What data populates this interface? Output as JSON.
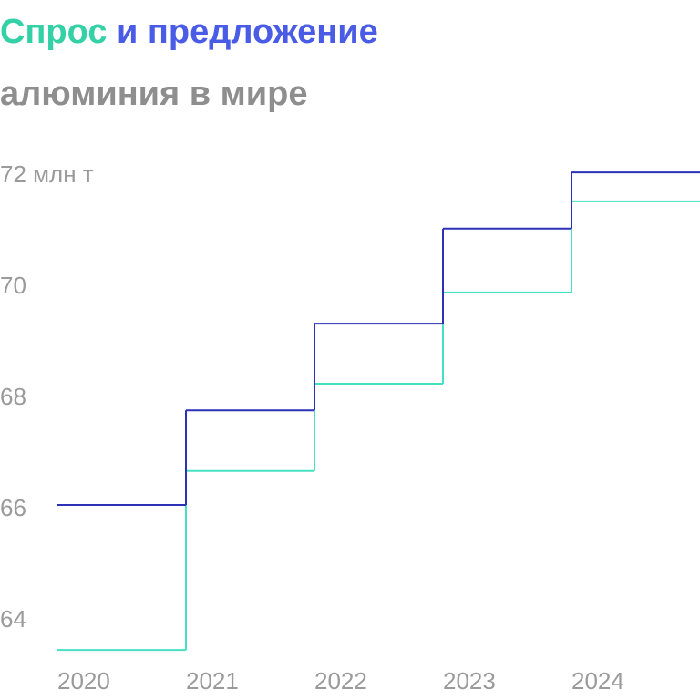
{
  "chart_data": {
    "type": "step",
    "title_parts": [
      {
        "text": "Спрос",
        "color": "#34d1a6"
      },
      {
        "text": "и предложение",
        "color": "#4a5ce6"
      },
      {
        "text": "алюминия в мире",
        "color": "#8e8e8e"
      }
    ],
    "categories": [
      "2020",
      "2021",
      "2022",
      "2023",
      "2024"
    ],
    "series": [
      {
        "color": "#2c31b8",
        "values": [
          66.05,
          67.75,
          69.31,
          71.02,
          72.03
        ]
      },
      {
        "color": "#46e0c2",
        "values": [
          63.44,
          66.66,
          68.23,
          69.87,
          71.51
        ]
      }
    ],
    "ylim": [
      63.3,
      72.3
    ],
    "yticks": [
      64,
      66,
      68,
      70,
      {
        "value": 72,
        "label": "72 млн т"
      }
    ],
    "grid": false
  }
}
